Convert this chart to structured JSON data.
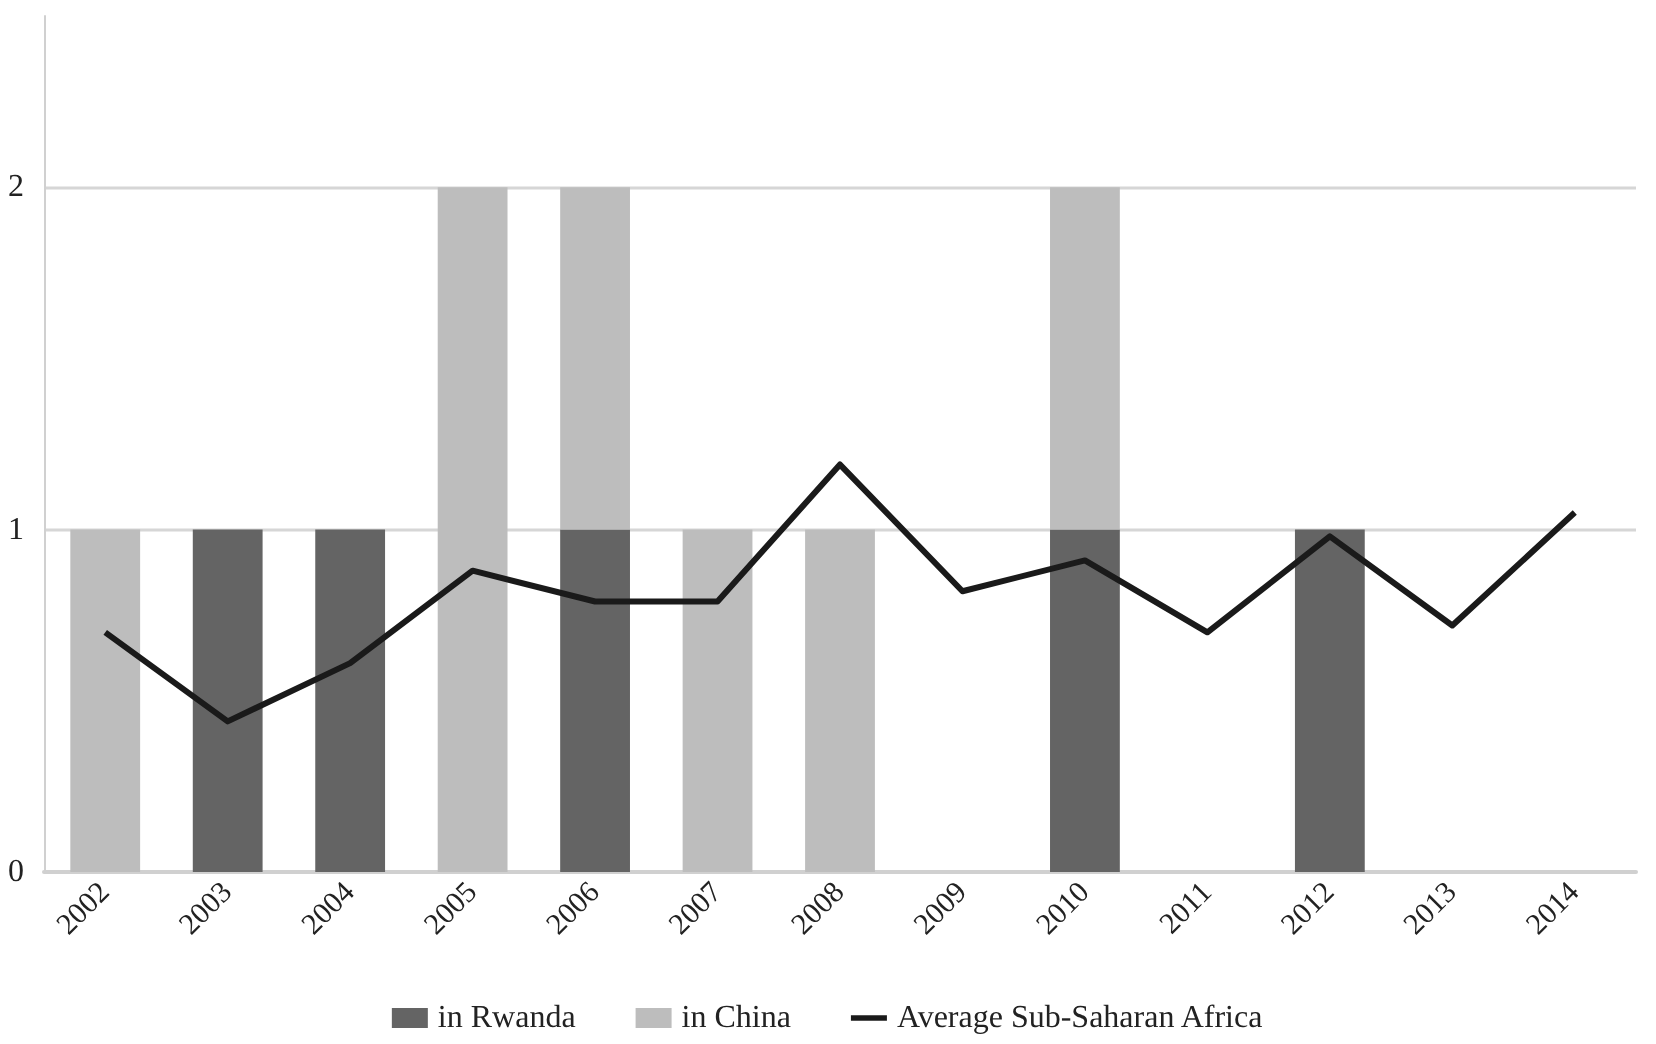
{
  "chart_data": {
    "type": "bar",
    "stacked": true,
    "categories": [
      "2002",
      "2003",
      "2004",
      "2005",
      "2006",
      "2007",
      "2008",
      "2009",
      "2010",
      "2011",
      "2012",
      "2013",
      "2014"
    ],
    "series": [
      {
        "name": "in Rwanda",
        "color": "#646464",
        "values": [
          0,
          1,
          1,
          0,
          1,
          0,
          0,
          0,
          1,
          0,
          1,
          0,
          0
        ]
      },
      {
        "name": "in China",
        "color": "#bdbdbd",
        "values": [
          1,
          0,
          0,
          2,
          1,
          1,
          1,
          0,
          1,
          0,
          0,
          0,
          0
        ]
      },
      {
        "name": "Average Sub-Saharan Africa",
        "type": "line",
        "color": "#1a1a1a",
        "values": [
          0.7,
          0.44,
          0.61,
          0.88,
          0.79,
          0.79,
          1.19,
          0.82,
          0.91,
          0.7,
          0.98,
          0.72,
          1.05
        ]
      }
    ],
    "ylim": [
      0,
      2.5
    ],
    "yticks": [
      0,
      1,
      2
    ],
    "grid": "y",
    "legend": "bottom",
    "marker": "none",
    "line_style": "solid"
  }
}
